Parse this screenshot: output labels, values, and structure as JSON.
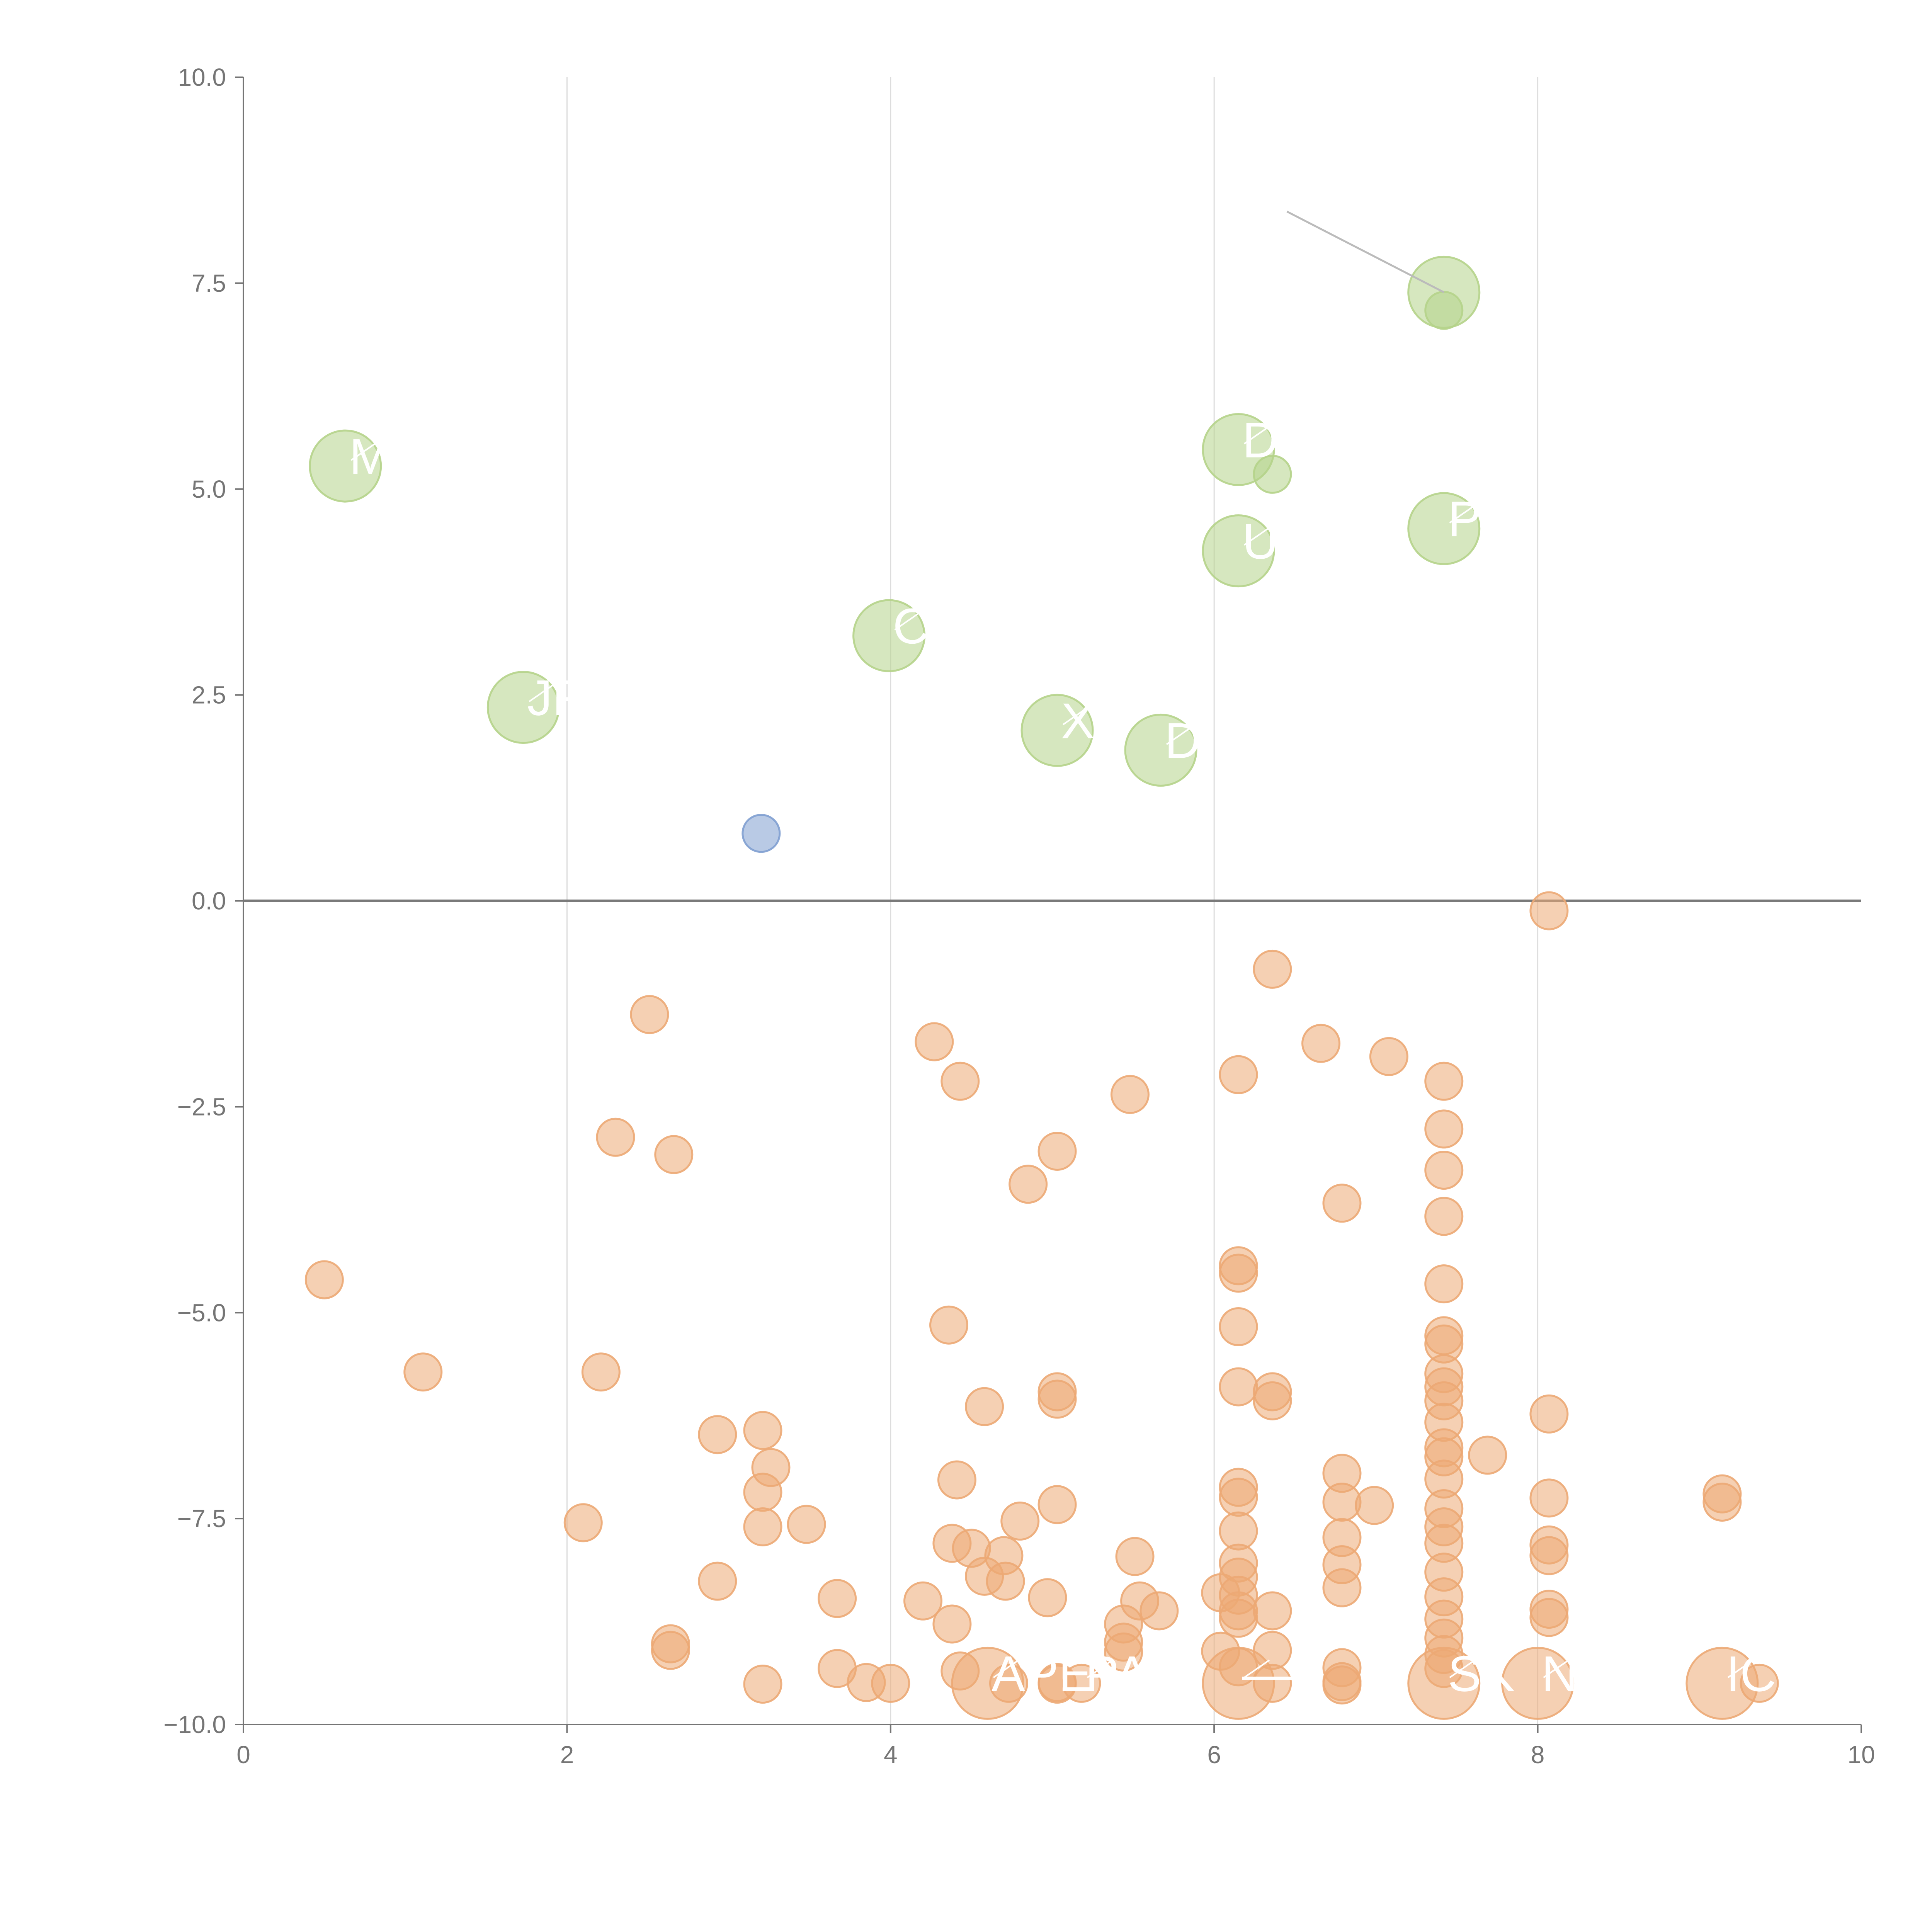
{
  "chart_data": {
    "type": "scatter",
    "title": "",
    "xlabel": "",
    "ylabel": "",
    "xlim": [
      0,
      10
    ],
    "ylim": [
      -10,
      10
    ],
    "x_ticks": [
      "0",
      "2",
      "4",
      "6",
      "8",
      "10"
    ],
    "y_ticks": [
      "10.0",
      "7.5",
      "5.0",
      "2.5",
      "0.0",
      "−2.5",
      "−5.0",
      "−7.5",
      "−10.0"
    ],
    "grid": "vertical lines at x ticks",
    "zero_line": true,
    "colors": {
      "positive": "#b5d38a",
      "neutral": "#7f9fd0",
      "negative": "#eca974",
      "label": "#ffffff",
      "connector": "#bbbbbb",
      "axis": "#757575"
    },
    "series": [
      {
        "name": "",
        "color": "#b5d38a",
        "points": [
          {
            "x": 0.63,
            "y": 5.28,
            "size": "large",
            "label": "M"
          },
          {
            "x": 1.73,
            "y": 2.35,
            "size": "large",
            "label": "JF"
          },
          {
            "x": 3.99,
            "y": 3.22,
            "size": "large",
            "label": "C"
          },
          {
            "x": 5.03,
            "y": 2.07,
            "size": "large",
            "label": "X"
          },
          {
            "x": 5.67,
            "y": 1.83,
            "size": "large",
            "label": "D"
          },
          {
            "x": 6.15,
            "y": 5.48,
            "size": "large",
            "label": "D"
          },
          {
            "x": 6.15,
            "y": 4.25,
            "size": "large",
            "label": "U"
          },
          {
            "x": 6.36,
            "y": 5.18,
            "size": "small"
          },
          {
            "x": 7.42,
            "y": 7.39,
            "size": "large"
          },
          {
            "x": 7.42,
            "y": 7.17,
            "size": "small"
          },
          {
            "x": 7.42,
            "y": 4.52,
            "size": "large",
            "label": "P"
          }
        ]
      },
      {
        "name": "",
        "color": "#7f9fd0",
        "points": [
          {
            "x": 3.2,
            "y": 0.82,
            "size": "small"
          }
        ]
      },
      {
        "name": "",
        "color": "#eca974",
        "points": [
          {
            "x": 0.5,
            "y": -4.6
          },
          {
            "x": 1.11,
            "y": -5.72
          },
          {
            "x": 2.1,
            "y": -7.55
          },
          {
            "x": 2.21,
            "y": -5.72
          },
          {
            "x": 2.3,
            "y": -2.87
          },
          {
            "x": 2.51,
            "y": -1.38
          },
          {
            "x": 2.64,
            "y": -9.02
          },
          {
            "x": 2.64,
            "y": -9.1
          },
          {
            "x": 2.66,
            "y": -3.08
          },
          {
            "x": 2.93,
            "y": -6.48
          },
          {
            "x": 2.93,
            "y": -8.26
          },
          {
            "x": 3.21,
            "y": -6.43
          },
          {
            "x": 3.21,
            "y": -7.18
          },
          {
            "x": 3.21,
            "y": -7.6
          },
          {
            "x": 3.21,
            "y": -9.51
          },
          {
            "x": 3.26,
            "y": -6.88
          },
          {
            "x": 3.48,
            "y": -7.57
          },
          {
            "x": 3.67,
            "y": -8.47
          },
          {
            "x": 3.67,
            "y": -9.32
          },
          {
            "x": 3.85,
            "y": -9.49
          },
          {
            "x": 4.0,
            "y": -9.5
          },
          {
            "x": 4.2,
            "y": -8.5
          },
          {
            "x": 4.27,
            "y": -1.71
          },
          {
            "x": 4.36,
            "y": -5.15
          },
          {
            "x": 4.38,
            "y": -7.8
          },
          {
            "x": 4.38,
            "y": -8.78
          },
          {
            "x": 4.41,
            "y": -7.03
          },
          {
            "x": 4.43,
            "y": -2.19
          },
          {
            "x": 4.43,
            "y": -9.35
          },
          {
            "x": 4.5,
            "y": -7.86
          },
          {
            "x": 4.58,
            "y": -6.14
          },
          {
            "x": 4.58,
            "y": -8.2
          },
          {
            "x": 4.6,
            "y": -9.5,
            "size": "large",
            "label": "APE"
          },
          {
            "x": 4.7,
            "y": -7.95
          },
          {
            "x": 4.71,
            "y": -8.26
          },
          {
            "x": 4.73,
            "y": -9.5
          },
          {
            "x": 4.8,
            "y": -7.53
          },
          {
            "x": 4.85,
            "y": -3.44
          },
          {
            "x": 4.97,
            "y": -8.46
          },
          {
            "x": 5.03,
            "y": -3.04
          },
          {
            "x": 5.03,
            "y": -5.96
          },
          {
            "x": 5.03,
            "y": -6.05
          },
          {
            "x": 5.03,
            "y": -7.33
          },
          {
            "x": 5.03,
            "y": -9.49
          },
          {
            "x": 5.03,
            "y": -9.51
          },
          {
            "x": 5.48,
            "y": -2.35
          },
          {
            "x": 5.44,
            "y": -8.78
          },
          {
            "x": 5.44,
            "y": -9.0
          },
          {
            "x": 5.44,
            "y": -9.12
          },
          {
            "x": 5.51,
            "y": -7.96
          },
          {
            "x": 5.54,
            "y": -8.5
          },
          {
            "x": 5.66,
            "y": -8.62
          },
          {
            "x": 5.18,
            "y": -9.5,
            "label": "PAY"
          },
          {
            "x": 6.04,
            "y": -8.4
          },
          {
            "x": 6.04,
            "y": -9.11
          },
          {
            "x": 6.15,
            "y": -2.11
          },
          {
            "x": 6.15,
            "y": -4.43
          },
          {
            "x": 6.15,
            "y": -4.52
          },
          {
            "x": 6.15,
            "y": -5.17
          },
          {
            "x": 6.15,
            "y": -5.9
          },
          {
            "x": 6.15,
            "y": -7.12
          },
          {
            "x": 6.15,
            "y": -7.24
          },
          {
            "x": 6.15,
            "y": -7.65
          },
          {
            "x": 6.15,
            "y": -8.04
          },
          {
            "x": 6.15,
            "y": -8.21
          },
          {
            "x": 6.15,
            "y": -8.43
          },
          {
            "x": 6.15,
            "y": -8.62
          },
          {
            "x": 6.15,
            "y": -8.71
          },
          {
            "x": 6.15,
            "y": -9.3
          },
          {
            "x": 6.15,
            "y": -9.5,
            "size": "large",
            "label": "—"
          },
          {
            "x": 6.36,
            "y": -0.83
          },
          {
            "x": 6.36,
            "y": -5.96
          },
          {
            "x": 6.36,
            "y": -6.07
          },
          {
            "x": 6.36,
            "y": -8.62
          },
          {
            "x": 6.36,
            "y": -9.1
          },
          {
            "x": 6.36,
            "y": -9.5
          },
          {
            "x": 6.66,
            "y": -1.73
          },
          {
            "x": 6.79,
            "y": -3.67
          },
          {
            "x": 6.79,
            "y": -6.95
          },
          {
            "x": 6.79,
            "y": -7.3
          },
          {
            "x": 6.79,
            "y": -7.73
          },
          {
            "x": 6.79,
            "y": -8.06
          },
          {
            "x": 6.79,
            "y": -8.34
          },
          {
            "x": 6.79,
            "y": -9.31
          },
          {
            "x": 6.79,
            "y": -9.48
          },
          {
            "x": 6.79,
            "y": -9.52
          },
          {
            "x": 6.99,
            "y": -7.34
          },
          {
            "x": 7.08,
            "y": -1.89
          },
          {
            "x": 7.42,
            "y": -2.19
          },
          {
            "x": 7.42,
            "y": -2.77
          },
          {
            "x": 7.42,
            "y": -3.27
          },
          {
            "x": 7.42,
            "y": -3.83
          },
          {
            "x": 7.42,
            "y": -4.65
          },
          {
            "x": 7.42,
            "y": -5.28
          },
          {
            "x": 7.42,
            "y": -5.38
          },
          {
            "x": 7.42,
            "y": -5.74
          },
          {
            "x": 7.42,
            "y": -5.9
          },
          {
            "x": 7.42,
            "y": -6.07
          },
          {
            "x": 7.42,
            "y": -6.33
          },
          {
            "x": 7.42,
            "y": -6.64
          },
          {
            "x": 7.42,
            "y": -6.75
          },
          {
            "x": 7.42,
            "y": -7.02
          },
          {
            "x": 7.42,
            "y": -7.38
          },
          {
            "x": 7.42,
            "y": -7.6
          },
          {
            "x": 7.42,
            "y": -7.8
          },
          {
            "x": 7.42,
            "y": -8.15
          },
          {
            "x": 7.42,
            "y": -8.45
          },
          {
            "x": 7.42,
            "y": -8.72
          },
          {
            "x": 7.42,
            "y": -8.95
          },
          {
            "x": 7.42,
            "y": -9.15
          },
          {
            "x": 7.42,
            "y": -9.32
          },
          {
            "x": 7.42,
            "y": -9.5,
            "size": "large",
            "label": "SK"
          },
          {
            "x": 7.69,
            "y": -6.73
          },
          {
            "x": 8.07,
            "y": -0.12
          },
          {
            "x": 8.07,
            "y": -6.23
          },
          {
            "x": 8.07,
            "y": -7.25
          },
          {
            "x": 8.07,
            "y": -7.82
          },
          {
            "x": 8.07,
            "y": -7.95
          },
          {
            "x": 8.07,
            "y": -8.6
          },
          {
            "x": 8.07,
            "y": -8.7
          },
          {
            "x": 8.0,
            "y": -9.5,
            "size": "large",
            "label": "NE"
          },
          {
            "x": 9.14,
            "y": -7.2
          },
          {
            "x": 9.14,
            "y": -7.3
          },
          {
            "x": 9.14,
            "y": -9.5,
            "size": "large",
            "label": "ICE"
          },
          {
            "x": 9.37,
            "y": -9.5
          }
        ]
      }
    ],
    "annotations": [
      {
        "type": "connector",
        "from": {
          "x": 6.45,
          "y": 8.37
        },
        "to": {
          "x": 7.42,
          "y": 7.39
        }
      }
    ]
  }
}
